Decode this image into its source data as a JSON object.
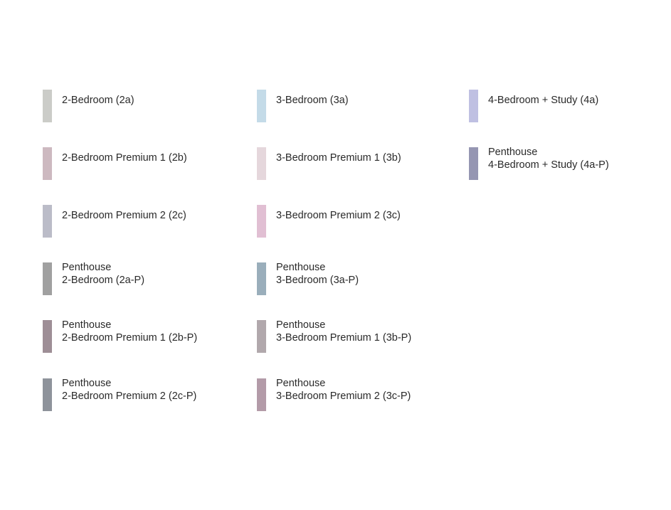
{
  "legend": {
    "columns": [
      [
        {
          "lines": [
            "2-Bedroom (2a)"
          ],
          "color": "#cbccc8"
        },
        {
          "lines": [
            "2-Bedroom Premium 1 (2b)"
          ],
          "color": "#cdb9c0"
        },
        {
          "lines": [
            "2-Bedroom Premium 2 (2c)"
          ],
          "color": "#bbbcc8"
        },
        {
          "lines": [
            "Penthouse",
            "2-Bedroom (2a-P)"
          ],
          "color": "#a0a0a0"
        },
        {
          "lines": [
            "Penthouse",
            "2-Bedroom Premium 1 (2b-P)"
          ],
          "color": "#9e8e96"
        },
        {
          "lines": [
            "Penthouse",
            "2-Bedroom Premium 2 (2c-P)"
          ],
          "color": "#8e939b"
        }
      ],
      [
        {
          "lines": [
            "3-Bedroom (3a)"
          ],
          "color": "#c4dbe8"
        },
        {
          "lines": [
            "3-Bedroom Premium 1 (3b)"
          ],
          "color": "#e5d7dc"
        },
        {
          "lines": [
            "3-Bedroom Premium 2 (3c)"
          ],
          "color": "#e1bfd3"
        },
        {
          "lines": [
            "Penthouse",
            "3-Bedroom (3a-P)"
          ],
          "color": "#9aaebb"
        },
        {
          "lines": [
            "Penthouse",
            "3-Bedroom Premium 1 (3b-P)"
          ],
          "color": "#b1a8ac"
        },
        {
          "lines": [
            "Penthouse",
            "3-Bedroom Premium 2 (3c-P)"
          ],
          "color": "#b39ba8"
        }
      ],
      [
        {
          "lines": [
            "4-Bedroom + Study (4a)"
          ],
          "color": "#bfc0e2"
        },
        {
          "lines": [
            "Penthouse",
            "4-Bedroom + Study (4a-P)"
          ],
          "color": "#9596b2"
        }
      ]
    ]
  }
}
